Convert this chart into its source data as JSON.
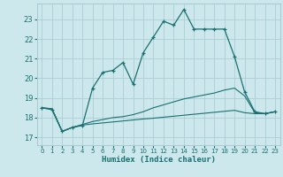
{
  "xlabel": "Humidex (Indice chaleur)",
  "bg_color": "#cce8ec",
  "grid_color": "#aacdd3",
  "line_color": "#1a7070",
  "xlim": [
    -0.5,
    23.5
  ],
  "ylim": [
    16.6,
    23.8
  ],
  "yticks": [
    17,
    18,
    19,
    20,
    21,
    22,
    23
  ],
  "xticks": [
    0,
    1,
    2,
    3,
    4,
    5,
    6,
    7,
    8,
    9,
    10,
    11,
    12,
    13,
    14,
    15,
    16,
    17,
    18,
    19,
    20,
    21,
    22,
    23
  ],
  "line1_x": [
    0,
    1,
    2,
    3,
    4,
    5,
    6,
    7,
    8,
    9,
    10,
    11,
    12,
    13,
    14,
    15,
    16,
    17,
    18,
    19,
    20,
    21,
    22,
    23
  ],
  "line1_y": [
    18.5,
    18.4,
    17.3,
    17.5,
    17.6,
    19.5,
    20.3,
    20.4,
    20.8,
    19.7,
    21.3,
    22.1,
    22.9,
    22.7,
    23.5,
    22.5,
    22.5,
    22.5,
    22.5,
    21.1,
    19.3,
    18.3,
    18.2,
    18.3
  ],
  "line2_x": [
    0,
    1,
    2,
    3,
    4,
    5,
    6,
    7,
    8,
    9,
    10,
    11,
    12,
    13,
    14,
    15,
    16,
    17,
    18,
    19,
    20,
    21,
    22,
    23
  ],
  "line2_y": [
    18.5,
    18.45,
    17.3,
    17.5,
    17.65,
    17.8,
    17.9,
    18.0,
    18.05,
    18.15,
    18.3,
    18.5,
    18.65,
    18.8,
    18.95,
    19.05,
    19.15,
    19.25,
    19.4,
    19.5,
    19.1,
    18.25,
    18.2,
    18.3
  ],
  "line3_x": [
    0,
    1,
    2,
    3,
    4,
    5,
    6,
    7,
    8,
    9,
    10,
    11,
    12,
    13,
    14,
    15,
    16,
    17,
    18,
    19,
    20,
    21,
    22,
    23
  ],
  "line3_y": [
    18.5,
    18.45,
    17.3,
    17.5,
    17.62,
    17.68,
    17.73,
    17.78,
    17.83,
    17.88,
    17.93,
    17.97,
    18.02,
    18.07,
    18.12,
    18.17,
    18.22,
    18.27,
    18.32,
    18.37,
    18.25,
    18.2,
    18.2,
    18.3
  ]
}
